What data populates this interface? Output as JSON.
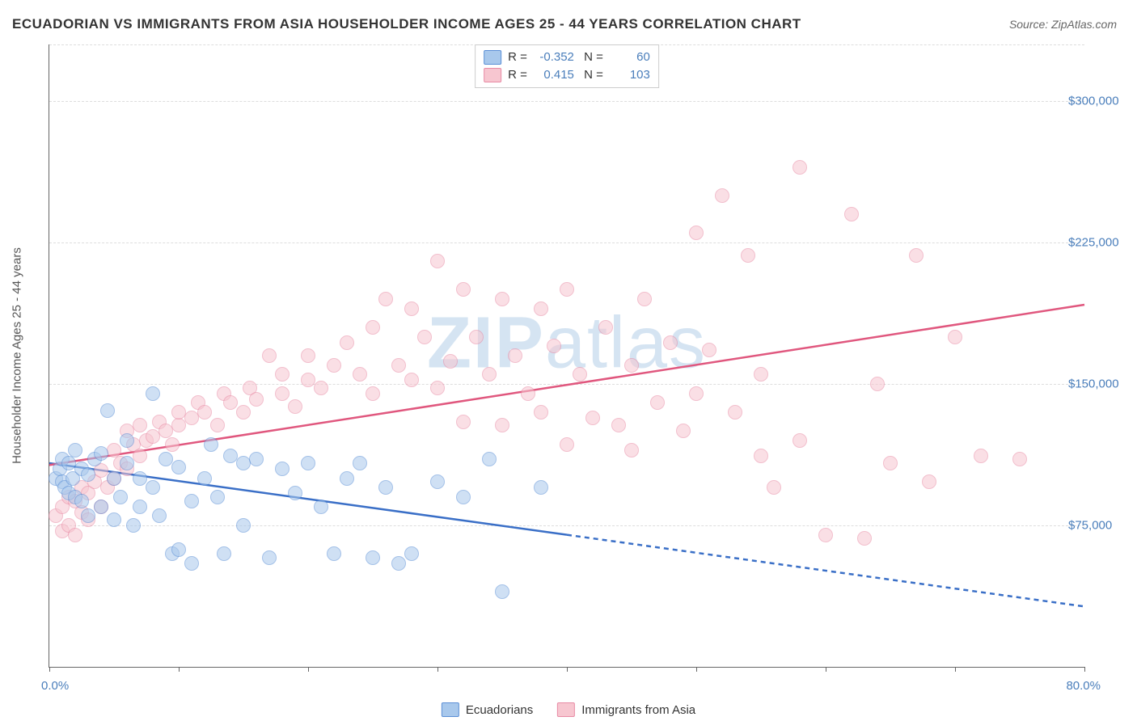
{
  "title": "ECUADORIAN VS IMMIGRANTS FROM ASIA HOUSEHOLDER INCOME AGES 25 - 44 YEARS CORRELATION CHART",
  "source": "Source: ZipAtlas.com",
  "watermark": {
    "bold": "ZIP",
    "light": "atlas"
  },
  "chart": {
    "type": "scatter",
    "yaxis_title": "Householder Income Ages 25 - 44 years",
    "xlim": [
      0,
      80
    ],
    "ylim": [
      0,
      330000
    ],
    "xaxis_min_label": "0.0%",
    "xaxis_max_label": "80.0%",
    "xtick_positions": [
      0,
      10,
      20,
      30,
      40,
      50,
      60,
      70,
      80
    ],
    "yticks": [
      {
        "v": 75000,
        "label": "$75,000"
      },
      {
        "v": 150000,
        "label": "$150,000"
      },
      {
        "v": 225000,
        "label": "$225,000"
      },
      {
        "v": 300000,
        "label": "$300,000"
      }
    ],
    "background_color": "#ffffff",
    "grid_color": "#dddddd",
    "marker_size": 16,
    "marker_opacity": 0.55
  },
  "series": {
    "blue": {
      "name": "Ecuadorians",
      "R": "-0.352",
      "N": "60",
      "fill": "#a8c8ec",
      "stroke": "#5b8fd6",
      "line_color": "#3a6fc7",
      "line": {
        "x1": 0,
        "y1": 108000,
        "x2": 80,
        "y2": 32000,
        "solid_until_x": 40
      },
      "points": [
        [
          0.5,
          100000
        ],
        [
          0.8,
          105000
        ],
        [
          1,
          98000
        ],
        [
          1,
          110000
        ],
        [
          1.2,
          95000
        ],
        [
          1.5,
          92000
        ],
        [
          1.5,
          108000
        ],
        [
          1.8,
          100000
        ],
        [
          2,
          90000
        ],
        [
          2,
          115000
        ],
        [
          2.5,
          88000
        ],
        [
          2.5,
          105000
        ],
        [
          3,
          102000
        ],
        [
          3,
          80000
        ],
        [
          3.5,
          110000
        ],
        [
          4,
          85000
        ],
        [
          4,
          113000
        ],
        [
          4.5,
          136000
        ],
        [
          5,
          100000
        ],
        [
          5,
          78000
        ],
        [
          5.5,
          90000
        ],
        [
          6,
          108000
        ],
        [
          6,
          120000
        ],
        [
          6.5,
          75000
        ],
        [
          7,
          100000
        ],
        [
          7,
          85000
        ],
        [
          8,
          145000
        ],
        [
          8,
          95000
        ],
        [
          8.5,
          80000
        ],
        [
          9,
          110000
        ],
        [
          9.5,
          60000
        ],
        [
          10,
          106000
        ],
        [
          10,
          62000
        ],
        [
          11,
          88000
        ],
        [
          11,
          55000
        ],
        [
          12,
          100000
        ],
        [
          12.5,
          118000
        ],
        [
          13,
          90000
        ],
        [
          13.5,
          60000
        ],
        [
          14,
          112000
        ],
        [
          15,
          108000
        ],
        [
          15,
          75000
        ],
        [
          16,
          110000
        ],
        [
          17,
          58000
        ],
        [
          18,
          105000
        ],
        [
          19,
          92000
        ],
        [
          20,
          108000
        ],
        [
          21,
          85000
        ],
        [
          22,
          60000
        ],
        [
          23,
          100000
        ],
        [
          24,
          108000
        ],
        [
          25,
          58000
        ],
        [
          26,
          95000
        ],
        [
          27,
          55000
        ],
        [
          28,
          60000
        ],
        [
          30,
          98000
        ],
        [
          32,
          90000
        ],
        [
          34,
          110000
        ],
        [
          35,
          40000
        ],
        [
          38,
          95000
        ]
      ]
    },
    "pink": {
      "name": "Immigrants from Asia",
      "R": "0.415",
      "N": "103",
      "fill": "#f7c6d0",
      "stroke": "#e88ba5",
      "line_color": "#e0577e",
      "line": {
        "x1": 0,
        "y1": 107000,
        "x2": 80,
        "y2": 192000,
        "solid_until_x": 80
      },
      "points": [
        [
          0.5,
          80000
        ],
        [
          1,
          72000
        ],
        [
          1,
          85000
        ],
        [
          1.5,
          75000
        ],
        [
          1.5,
          90000
        ],
        [
          2,
          70000
        ],
        [
          2,
          88000
        ],
        [
          2.5,
          82000
        ],
        [
          2.5,
          95000
        ],
        [
          3,
          78000
        ],
        [
          3,
          92000
        ],
        [
          3.5,
          98000
        ],
        [
          4,
          85000
        ],
        [
          4,
          104000
        ],
        [
          4.5,
          95000
        ],
        [
          5,
          100000
        ],
        [
          5,
          115000
        ],
        [
          5.5,
          108000
        ],
        [
          6,
          105000
        ],
        [
          6,
          125000
        ],
        [
          6.5,
          118000
        ],
        [
          7,
          112000
        ],
        [
          7,
          128000
        ],
        [
          7.5,
          120000
        ],
        [
          8,
          122000
        ],
        [
          8.5,
          130000
        ],
        [
          9,
          125000
        ],
        [
          9.5,
          118000
        ],
        [
          10,
          128000
        ],
        [
          10,
          135000
        ],
        [
          11,
          132000
        ],
        [
          11.5,
          140000
        ],
        [
          12,
          135000
        ],
        [
          13,
          128000
        ],
        [
          13.5,
          145000
        ],
        [
          14,
          140000
        ],
        [
          15,
          135000
        ],
        [
          15.5,
          148000
        ],
        [
          16,
          142000
        ],
        [
          17,
          165000
        ],
        [
          18,
          145000
        ],
        [
          18,
          155000
        ],
        [
          19,
          138000
        ],
        [
          20,
          152000
        ],
        [
          20,
          165000
        ],
        [
          21,
          148000
        ],
        [
          22,
          160000
        ],
        [
          23,
          172000
        ],
        [
          24,
          155000
        ],
        [
          25,
          180000
        ],
        [
          25,
          145000
        ],
        [
          26,
          195000
        ],
        [
          27,
          160000
        ],
        [
          28,
          152000
        ],
        [
          28,
          190000
        ],
        [
          29,
          175000
        ],
        [
          30,
          215000
        ],
        [
          30,
          148000
        ],
        [
          31,
          162000
        ],
        [
          32,
          200000
        ],
        [
          32,
          130000
        ],
        [
          33,
          175000
        ],
        [
          34,
          155000
        ],
        [
          35,
          195000
        ],
        [
          35,
          128000
        ],
        [
          36,
          165000
        ],
        [
          37,
          145000
        ],
        [
          38,
          190000
        ],
        [
          38,
          135000
        ],
        [
          39,
          170000
        ],
        [
          40,
          118000
        ],
        [
          40,
          200000
        ],
        [
          41,
          155000
        ],
        [
          42,
          132000
        ],
        [
          43,
          180000
        ],
        [
          44,
          128000
        ],
        [
          45,
          160000
        ],
        [
          45,
          115000
        ],
        [
          46,
          195000
        ],
        [
          47,
          140000
        ],
        [
          48,
          172000
        ],
        [
          49,
          125000
        ],
        [
          50,
          230000
        ],
        [
          50,
          145000
        ],
        [
          51,
          168000
        ],
        [
          52,
          250000
        ],
        [
          53,
          135000
        ],
        [
          54,
          218000
        ],
        [
          55,
          155000
        ],
        [
          55,
          112000
        ],
        [
          56,
          95000
        ],
        [
          58,
          265000
        ],
        [
          58,
          120000
        ],
        [
          60,
          70000
        ],
        [
          62,
          240000
        ],
        [
          63,
          68000
        ],
        [
          64,
          150000
        ],
        [
          65,
          108000
        ],
        [
          67,
          218000
        ],
        [
          68,
          98000
        ],
        [
          70,
          175000
        ],
        [
          72,
          112000
        ],
        [
          75,
          110000
        ]
      ]
    }
  }
}
